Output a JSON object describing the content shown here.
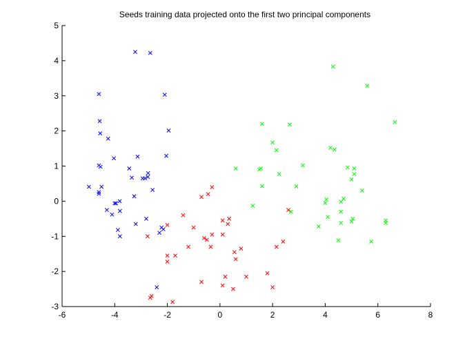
{
  "chart_data": {
    "type": "scatter",
    "title": "Seeds training data projected onto the first two principal components",
    "xlabel": "",
    "ylabel": "",
    "xlim": [
      -6,
      8
    ],
    "ylim": [
      -3,
      5
    ],
    "xticks": [
      -6,
      -4,
      -2,
      0,
      2,
      4,
      6,
      8
    ],
    "yticks": [
      -3,
      -2,
      -1,
      0,
      1,
      2,
      3,
      4,
      5
    ],
    "grid": false,
    "legend": "none",
    "marker": "x",
    "series": [
      {
        "color": "#0000ff",
        "points": [
          [
            -3.22,
            4.25
          ],
          [
            -2.65,
            4.22
          ],
          [
            -4.6,
            3.05
          ],
          [
            -2.1,
            3.03
          ],
          [
            -4.57,
            2.28
          ],
          [
            -1.95,
            2.01
          ],
          [
            -4.55,
            1.93
          ],
          [
            -4.25,
            1.78
          ],
          [
            -3.13,
            1.27
          ],
          [
            -2.04,
            1.29
          ],
          [
            -4.03,
            1.22
          ],
          [
            -2.85,
            0.65
          ],
          [
            -3.45,
            0.93
          ],
          [
            -4.6,
            1.02
          ],
          [
            -4.54,
            0.98
          ],
          [
            -2.73,
            0.8
          ],
          [
            -3.35,
            0.67
          ],
          [
            -2.94,
            0.65
          ],
          [
            -2.74,
            0.69
          ],
          [
            -4.98,
            0.41
          ],
          [
            -4.5,
            0.41
          ],
          [
            -4.6,
            0.26
          ],
          [
            -4.6,
            0.21
          ],
          [
            -2.56,
            0.32
          ],
          [
            -3.26,
            0.14
          ],
          [
            -4.0,
            -0.06
          ],
          [
            -3.95,
            -0.06
          ],
          [
            -3.81,
            -0.0
          ],
          [
            -4.3,
            -0.25
          ],
          [
            -3.8,
            -0.28
          ],
          [
            -4.1,
            -0.38
          ],
          [
            -2.8,
            -0.5
          ],
          [
            -3.2,
            -0.65
          ],
          [
            -3.88,
            -0.82
          ],
          [
            -2.22,
            -0.75
          ],
          [
            -2.15,
            -0.8
          ],
          [
            -2.3,
            -0.9
          ],
          [
            -3.8,
            -1.0
          ],
          [
            -2.4,
            -2.45
          ]
        ]
      },
      {
        "color": "#ff0000",
        "points": [
          [
            -0.3,
            0.4
          ],
          [
            -0.45,
            0.2
          ],
          [
            -0.7,
            0.12
          ],
          [
            -1.4,
            -0.4
          ],
          [
            -2.0,
            -0.68
          ],
          [
            -1.0,
            -0.75
          ],
          [
            0.1,
            -0.55
          ],
          [
            0.35,
            -0.5
          ],
          [
            0.3,
            -0.65
          ],
          [
            -0.6,
            -1.05
          ],
          [
            -0.5,
            -1.1
          ],
          [
            -0.3,
            -0.95
          ],
          [
            0.1,
            -0.95
          ],
          [
            -2.75,
            -1.0
          ],
          [
            -1.2,
            -1.3
          ],
          [
            -0.35,
            -1.3
          ],
          [
            0.8,
            -1.35
          ],
          [
            0.55,
            -1.45
          ],
          [
            0.6,
            -1.65
          ],
          [
            -2.0,
            -1.55
          ],
          [
            -1.7,
            -1.55
          ],
          [
            -2.0,
            -1.72
          ],
          [
            2.4,
            -1.15
          ],
          [
            2.15,
            -1.3
          ],
          [
            -0.7,
            -2.3
          ],
          [
            0.2,
            -2.15
          ],
          [
            1.8,
            -2.05
          ],
          [
            0.1,
            -2.4
          ],
          [
            1.0,
            -2.15
          ],
          [
            0.5,
            -2.5
          ],
          [
            2.0,
            -2.45
          ],
          [
            -2.6,
            -2.7
          ],
          [
            -2.65,
            -2.75
          ],
          [
            -1.8,
            -2.87
          ],
          [
            2.6,
            -0.25
          ]
        ]
      },
      {
        "color": "#00ff00",
        "points": [
          [
            4.3,
            3.83
          ],
          [
            5.6,
            3.28
          ],
          [
            6.65,
            2.25
          ],
          [
            1.6,
            2.2
          ],
          [
            2.65,
            2.18
          ],
          [
            2.0,
            1.67
          ],
          [
            4.2,
            1.52
          ],
          [
            4.35,
            1.47
          ],
          [
            2.15,
            1.45
          ],
          [
            0.6,
            0.93
          ],
          [
            1.5,
            0.9
          ],
          [
            1.55,
            0.93
          ],
          [
            3.15,
            1.02
          ],
          [
            4.85,
            0.96
          ],
          [
            5.1,
            0.93
          ],
          [
            2.25,
            0.77
          ],
          [
            5.1,
            0.77
          ],
          [
            5.0,
            0.62
          ],
          [
            1.6,
            0.43
          ],
          [
            2.9,
            0.42
          ],
          [
            5.4,
            0.3
          ],
          [
            4.05,
            0.05
          ],
          [
            4.7,
            0.07
          ],
          [
            4.0,
            -0.05
          ],
          [
            4.6,
            -0.02
          ],
          [
            1.25,
            -0.13
          ],
          [
            4.6,
            -0.3
          ],
          [
            2.7,
            -0.3
          ],
          [
            5.05,
            -0.5
          ],
          [
            4.1,
            -0.45
          ],
          [
            6.3,
            -0.55
          ],
          [
            5.0,
            -0.58
          ],
          [
            6.3,
            -0.62
          ],
          [
            4.6,
            -0.62
          ],
          [
            3.75,
            -0.72
          ],
          [
            4.5,
            -1.12
          ],
          [
            5.75,
            -1.15
          ]
        ]
      }
    ]
  }
}
